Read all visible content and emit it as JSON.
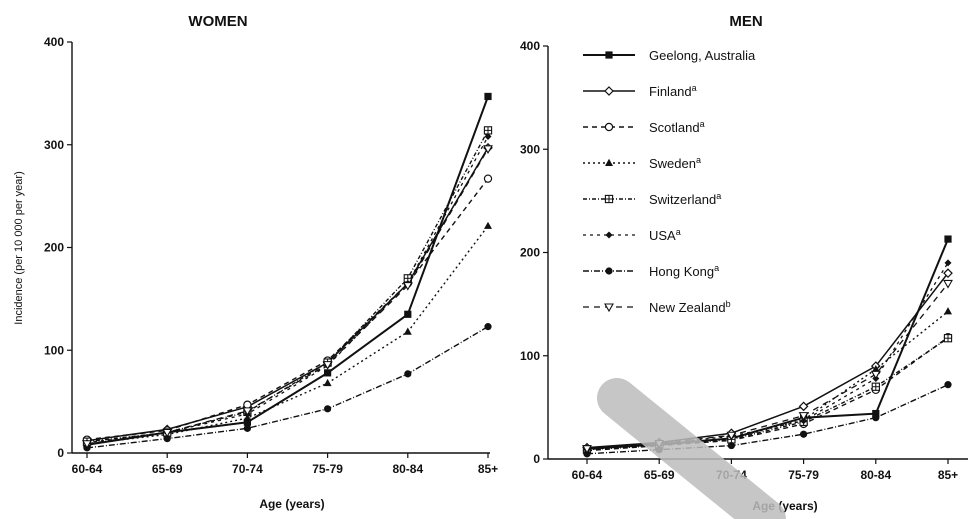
{
  "chart_data": [
    {
      "type": "line",
      "title": "WOMEN",
      "xlabel": "Age (years)",
      "ylabel": "Incidence (per 10 000 per year)",
      "categories": [
        "60-64",
        "65-69",
        "70-74",
        "75-79",
        "80-84",
        "85+"
      ],
      "ylim": [
        0,
        400
      ],
      "yticks": [
        0,
        100,
        200,
        300,
        400
      ],
      "series": [
        {
          "name": "Geelong, Australia",
          "values": [
            8,
            20,
            30,
            78,
            135,
            347
          ]
        },
        {
          "name": "Finland",
          "values": [
            12,
            23,
            45,
            88,
            165,
            297
          ]
        },
        {
          "name": "Scotland",
          "values": [
            13,
            22,
            47,
            90,
            165,
            267
          ]
        },
        {
          "name": "Sweden",
          "values": [
            9,
            18,
            34,
            68,
            118,
            221
          ]
        },
        {
          "name": "Switzerland",
          "values": [
            11,
            20,
            40,
            88,
            170,
            314
          ]
        },
        {
          "name": "USA",
          "values": [
            10,
            20,
            38,
            85,
            165,
            308
          ]
        },
        {
          "name": "Hong Kong",
          "values": [
            5,
            14,
            24,
            43,
            77,
            123
          ]
        },
        {
          "name": "New Zealand",
          "values": [
            9,
            20,
            41,
            86,
            163,
            296
          ]
        }
      ]
    },
    {
      "type": "line",
      "title": "MEN",
      "xlabel": "Age (years)",
      "ylabel": "",
      "categories": [
        "60-64",
        "65-69",
        "70-74",
        "75-79",
        "80-84",
        "85+"
      ],
      "ylim": [
        0,
        400
      ],
      "yticks": [
        0,
        100,
        200,
        300,
        400
      ],
      "legend": "top-left",
      "series": [
        {
          "name": "Geelong, Australia",
          "sup": "",
          "values": [
            10,
            14,
            20,
            40,
            44,
            213
          ]
        },
        {
          "name": "Finland",
          "sup": "a",
          "values": [
            11,
            16,
            25,
            51,
            90,
            180
          ]
        },
        {
          "name": "Scotland",
          "sup": "a",
          "values": [
            8,
            13,
            18,
            34,
            67,
            118
          ]
        },
        {
          "name": "Sweden",
          "sup": "a",
          "values": [
            10,
            14,
            20,
            38,
            87,
            143
          ]
        },
        {
          "name": "Switzerland",
          "sup": "a",
          "values": [
            9,
            13,
            19,
            36,
            70,
            117
          ]
        },
        {
          "name": "USA",
          "sup": "a",
          "values": [
            9,
            15,
            22,
            37,
            78,
            190
          ]
        },
        {
          "name": "Hong Kong",
          "sup": "a",
          "values": [
            5,
            9,
            13,
            24,
            40,
            72
          ]
        },
        {
          "name": "New Zealand",
          "sup": "b",
          "values": [
            10,
            15,
            23,
            42,
            82,
            170
          ]
        }
      ]
    }
  ],
  "styles": [
    {
      "series": "Geelong, Australia",
      "dash": "",
      "marker": "square-filled",
      "width": 2.0
    },
    {
      "series": "Finland",
      "dash": "",
      "marker": "diamond-open",
      "width": 1.5
    },
    {
      "series": "Scotland",
      "dash": "5,4",
      "marker": "circle-open",
      "width": 1.4
    },
    {
      "series": "Sweden",
      "dash": "2,3",
      "marker": "triangle-filled",
      "width": 1.4
    },
    {
      "series": "Switzerland",
      "dash": "4,2,1,2",
      "marker": "square-cross",
      "width": 1.4
    },
    {
      "series": "USA",
      "dash": "3,4",
      "marker": "diamond-filled",
      "width": 1.3
    },
    {
      "series": "Hong Kong",
      "dash": "6,2,1,2",
      "marker": "circle-filled",
      "width": 1.4
    },
    {
      "series": "New Zealand",
      "dash": "6,5",
      "marker": "triangle-down-open",
      "width": 1.3
    }
  ],
  "line_color": "#111111",
  "watermark_color": "#bdbdbd"
}
